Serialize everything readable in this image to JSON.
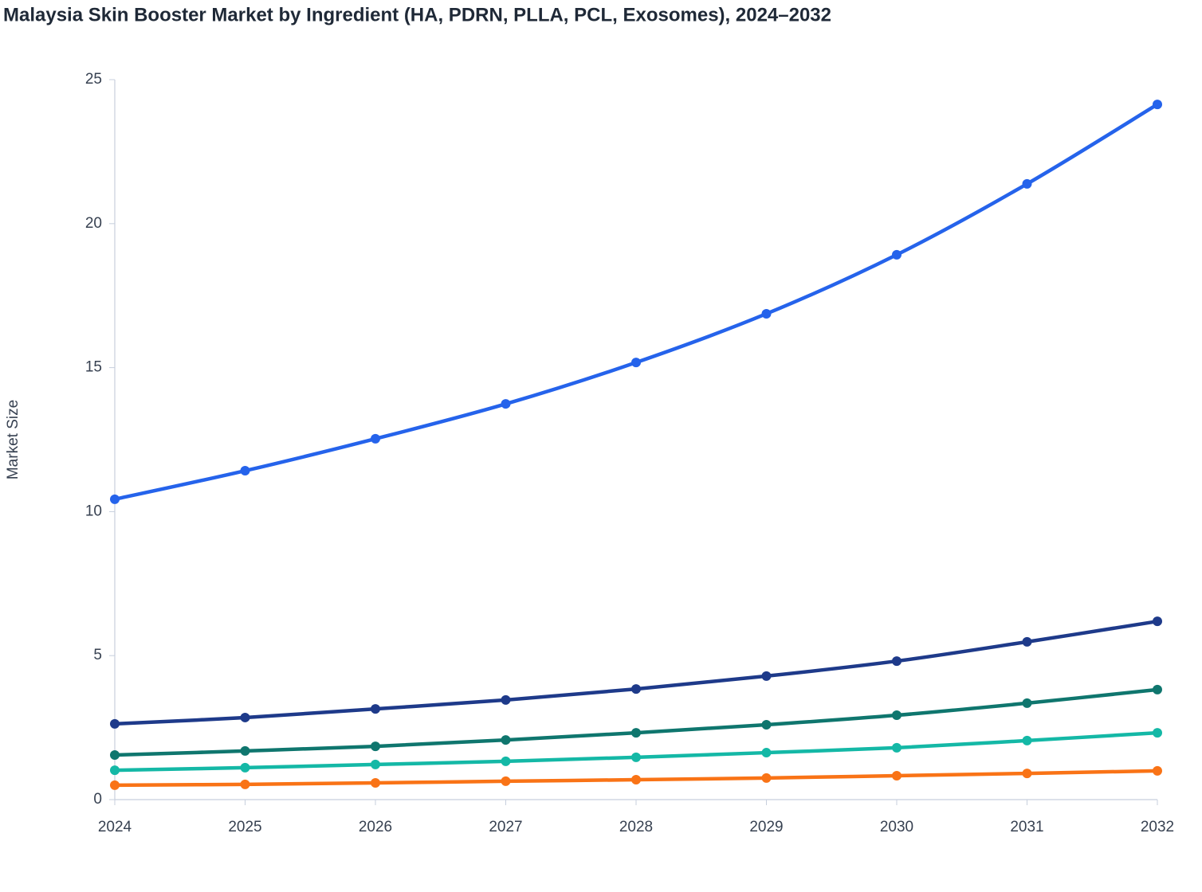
{
  "chart_data": {
    "type": "line",
    "title": "Malaysia Skin Booster Market by Ingredient (HA, PDRN, PLLA, PCL, Exosomes), 2024–2032",
    "y_label": "Market Size",
    "x": [
      2024,
      2025,
      2026,
      2027,
      2028,
      2029,
      2030,
      2031,
      2032
    ],
    "xlim": [
      2024,
      2032
    ],
    "xticks": [
      2024,
      2025,
      2026,
      2027,
      2028,
      2029,
      2030,
      2031,
      2032
    ],
    "ylim": [
      0,
      25
    ],
    "yticks": [
      0,
      5,
      10,
      15,
      20,
      25
    ],
    "grid": false,
    "series": [
      {
        "color": "#2563eb",
        "values": [
          10.43,
          11.42,
          12.53,
          13.74,
          15.18,
          16.87,
          18.92,
          21.38,
          24.14
        ]
      },
      {
        "color": "#1e3a8a",
        "values": [
          2.63,
          2.85,
          3.15,
          3.46,
          3.84,
          4.29,
          4.81,
          5.48,
          6.19
        ]
      },
      {
        "color": "#0f766e",
        "values": [
          1.55,
          1.69,
          1.85,
          2.07,
          2.32,
          2.6,
          2.93,
          3.35,
          3.82
        ]
      },
      {
        "color": "#14b8a6",
        "values": [
          1.02,
          1.11,
          1.22,
          1.33,
          1.47,
          1.63,
          1.8,
          2.05,
          2.32
        ]
      },
      {
        "color": "#f97316",
        "values": [
          0.5,
          0.53,
          0.58,
          0.64,
          0.69,
          0.75,
          0.83,
          0.91,
          1.0
        ]
      }
    ]
  }
}
